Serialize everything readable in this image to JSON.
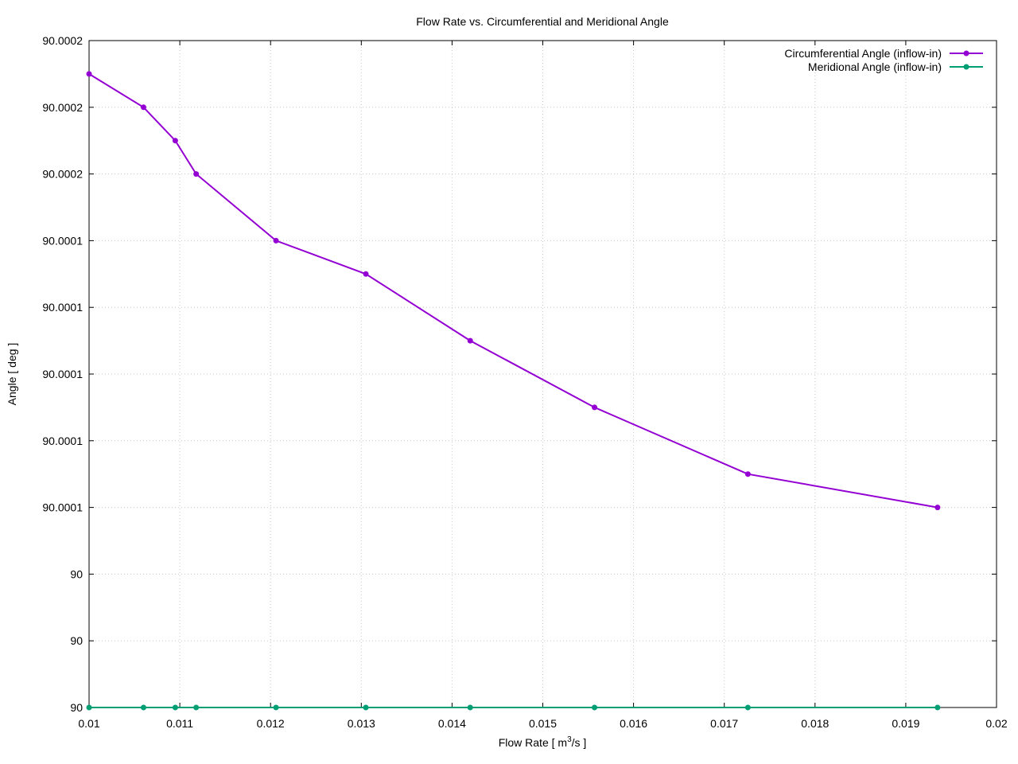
{
  "chart_data": {
    "type": "line",
    "title": "Flow Rate vs. Circumferential and Meridional Angle",
    "xlabel_prefix": "Flow Rate [ m",
    "xlabel_sup": "3",
    "xlabel_suffix": "/s ]",
    "ylabel": "Angle [ deg ]",
    "xlim": [
      0.01,
      0.02
    ],
    "ylim_fraction": [
      0,
      10
    ],
    "grid": true,
    "legend_position": "top-right",
    "x_ticks": [
      0.01,
      0.011,
      0.012,
      0.013,
      0.014,
      0.015,
      0.016,
      0.017,
      0.018,
      0.019,
      0.02
    ],
    "x_tick_labels": [
      "0.01",
      "0.011",
      "0.012",
      "0.013",
      "0.014",
      "0.015",
      "0.016",
      "0.017",
      "0.018",
      "0.019",
      "0.02"
    ],
    "y_ticks": [
      0,
      1,
      2,
      3,
      4,
      5,
      6,
      7,
      8,
      9,
      10
    ],
    "y_tick_labels": [
      "90",
      "90",
      "90",
      "90.0001",
      "90.0001",
      "90.0001",
      "90.0001",
      "90.0001",
      "90.0002",
      "90.0002",
      "90.0002"
    ],
    "y_scale_note": "y values expressed in tick-index units (tick spacing 2e-5 deg above 90)",
    "series": [
      {
        "name": "Circumferential Angle (inflow-in)",
        "color": "#9400d3",
        "x": [
          0.01,
          0.0106,
          0.01095,
          0.01118,
          0.01206,
          0.01305,
          0.0142,
          0.01557,
          0.01726,
          0.01935
        ],
        "y": [
          9.5,
          9.0,
          8.5,
          8.0,
          7.0,
          6.5,
          5.5,
          4.5,
          3.5,
          3.0
        ]
      },
      {
        "name": "Meridional Angle (inflow-in)",
        "color": "#009e73",
        "x": [
          0.01,
          0.0106,
          0.01095,
          0.01118,
          0.01206,
          0.01305,
          0.0142,
          0.01557,
          0.01726,
          0.01935
        ],
        "y": [
          0,
          0,
          0,
          0,
          0,
          0,
          0,
          0,
          0,
          0
        ]
      }
    ]
  }
}
